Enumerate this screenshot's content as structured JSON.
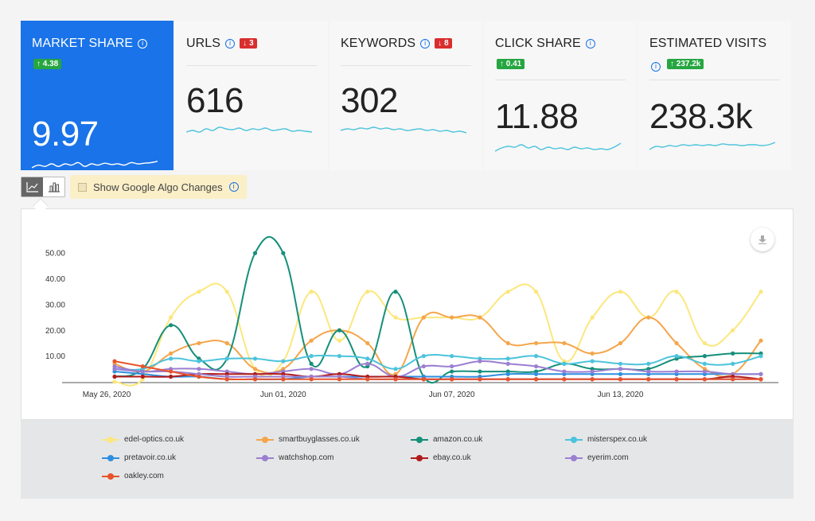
{
  "kpis": [
    {
      "title": "MARKET SHARE",
      "change": "↑ 4.38",
      "change_dir": "up",
      "value": "9.97",
      "active": true
    },
    {
      "title": "URLS",
      "change": "↓ 3",
      "change_dir": "down",
      "value": "616"
    },
    {
      "title": "KEYWORDS",
      "change": "↓ 8",
      "change_dir": "down",
      "value": "302"
    },
    {
      "title": "CLICK SHARE",
      "change": "↑ 0.41",
      "change_dir": "up",
      "value": "11.88"
    },
    {
      "title": "ESTIMATED VISITS",
      "change": "↑ 237.2k",
      "change_dir": "up",
      "value": "238.3k"
    }
  ],
  "toolbar": {
    "line_view_icon": "line-chart-icon",
    "bar_view_icon": "bar-chart-icon",
    "algo_label": "Show Google Algo Changes"
  },
  "colors": {
    "accent": "#1a73e8",
    "up": "#26a641",
    "down": "#d92e2e",
    "spark": "#4cc3dc"
  },
  "chart_data": {
    "type": "line",
    "x": [
      "2020-05-26",
      "2020-05-27",
      "2020-05-28",
      "2020-05-29",
      "2020-05-30",
      "2020-05-31",
      "2020-06-01",
      "2020-06-02",
      "2020-06-03",
      "2020-06-04",
      "2020-06-05",
      "2020-06-06",
      "2020-06-07",
      "2020-06-08",
      "2020-06-09",
      "2020-06-10",
      "2020-06-11",
      "2020-06-12",
      "2020-06-13",
      "2020-06-14",
      "2020-06-15",
      "2020-06-16",
      "2020-06-17",
      "2020-06-18"
    ],
    "x_tick_labels": [
      "May 26, 2020",
      "Jun 01, 2020",
      "Jun 07, 2020",
      "Jun 13, 2020"
    ],
    "y_tick_labels": [
      "10.00",
      "20.00",
      "30.00",
      "40.00",
      "50.00"
    ],
    "ylim": [
      0,
      55
    ],
    "grid": false,
    "legend_position": "bottom",
    "series": [
      {
        "name": "edel-optics.co.uk",
        "color": "#fce77d",
        "values": [
          0,
          1,
          25,
          35,
          35,
          5,
          8,
          35,
          16,
          35,
          25,
          25,
          25,
          25,
          35,
          35,
          8,
          25,
          35,
          25,
          35,
          15,
          20,
          35
        ]
      },
      {
        "name": "smartbuyglasses.co.uk",
        "color": "#f5a54a",
        "values": [
          7,
          4,
          11,
          15,
          15,
          5,
          5,
          16,
          20,
          15,
          3,
          25,
          25,
          25,
          15,
          15,
          15,
          11,
          15,
          25,
          15,
          5,
          3,
          16
        ]
      },
      {
        "name": "amazon.co.uk",
        "color": "#158f7a",
        "values": [
          2,
          5,
          22,
          9,
          9,
          50,
          50,
          7,
          20,
          6,
          35,
          2,
          4,
          4,
          4,
          4,
          7,
          5,
          5,
          5,
          9,
          10,
          11,
          11
        ]
      },
      {
        "name": "misterspex.co.uk",
        "color": "#4cc3dc",
        "values": [
          5,
          5,
          9,
          8,
          9,
          9,
          8,
          10,
          10,
          9,
          5,
          10,
          10,
          9,
          9,
          10,
          7,
          8,
          7,
          7,
          10,
          7,
          7,
          10
        ]
      },
      {
        "name": "pretavoir.co.uk",
        "color": "#2e8fe0",
        "values": [
          4,
          3,
          2,
          2,
          1,
          1,
          1,
          2,
          2,
          2,
          2,
          2,
          2,
          2,
          3,
          3,
          3,
          3,
          3,
          3,
          3,
          3,
          3,
          3
        ]
      },
      {
        "name": "watchshop.com",
        "color": "#9b7fd1",
        "values": [
          6,
          4,
          5,
          5,
          4,
          3,
          4,
          5,
          3,
          7,
          2,
          6,
          6,
          8,
          7,
          6,
          4,
          4,
          5,
          4,
          4,
          4,
          3,
          3
        ]
      },
      {
        "name": "ebay.co.uk",
        "color": "#b21b1b",
        "values": [
          2,
          2,
          2,
          3,
          3,
          3,
          3,
          2,
          3,
          2,
          2,
          1,
          1,
          1,
          1,
          1,
          1,
          1,
          1,
          1,
          1,
          1,
          2,
          1
        ]
      },
      {
        "name": "eyerim.com",
        "color": "#9b7fd1",
        "values": [
          5,
          4,
          4,
          3,
          2,
          2,
          2,
          2,
          2,
          1,
          1,
          1,
          1,
          1,
          1,
          1,
          1,
          1,
          1,
          1,
          1,
          1,
          1,
          1
        ]
      },
      {
        "name": "oakley.com",
        "color": "#e8542b",
        "values": [
          8,
          6,
          4,
          2,
          1,
          1,
          1,
          1,
          1,
          1,
          1,
          1,
          1,
          1,
          1,
          1,
          1,
          1,
          1,
          1,
          1,
          1,
          1,
          1
        ]
      }
    ]
  },
  "sparklines": [
    [
      0.2,
      0.4,
      0.3,
      0.5,
      0.3,
      0.5,
      0.4,
      0.6,
      0.3,
      0.5,
      0.4,
      0.55,
      0.45,
      0.5,
      0.4,
      0.6,
      0.5,
      0.55,
      0.6,
      0.7
    ],
    [
      0.4,
      0.5,
      0.4,
      0.6,
      0.5,
      0.7,
      0.6,
      0.55,
      0.65,
      0.5,
      0.6,
      0.55,
      0.65,
      0.5,
      0.55,
      0.6,
      0.45,
      0.5,
      0.45,
      0.4
    ],
    [
      0.5,
      0.6,
      0.55,
      0.65,
      0.6,
      0.7,
      0.6,
      0.65,
      0.55,
      0.6,
      0.5,
      0.55,
      0.6,
      0.5,
      0.55,
      0.45,
      0.5,
      0.4,
      0.45,
      0.35
    ],
    [
      0.2,
      0.4,
      0.5,
      0.45,
      0.6,
      0.4,
      0.5,
      0.3,
      0.45,
      0.35,
      0.4,
      0.3,
      0.45,
      0.35,
      0.4,
      0.3,
      0.35,
      0.3,
      0.45,
      0.7
    ],
    [
      0.3,
      0.5,
      0.45,
      0.55,
      0.5,
      0.6,
      0.55,
      0.6,
      0.55,
      0.6,
      0.55,
      0.65,
      0.6,
      0.6,
      0.55,
      0.6,
      0.6,
      0.55,
      0.6,
      0.75
    ]
  ]
}
